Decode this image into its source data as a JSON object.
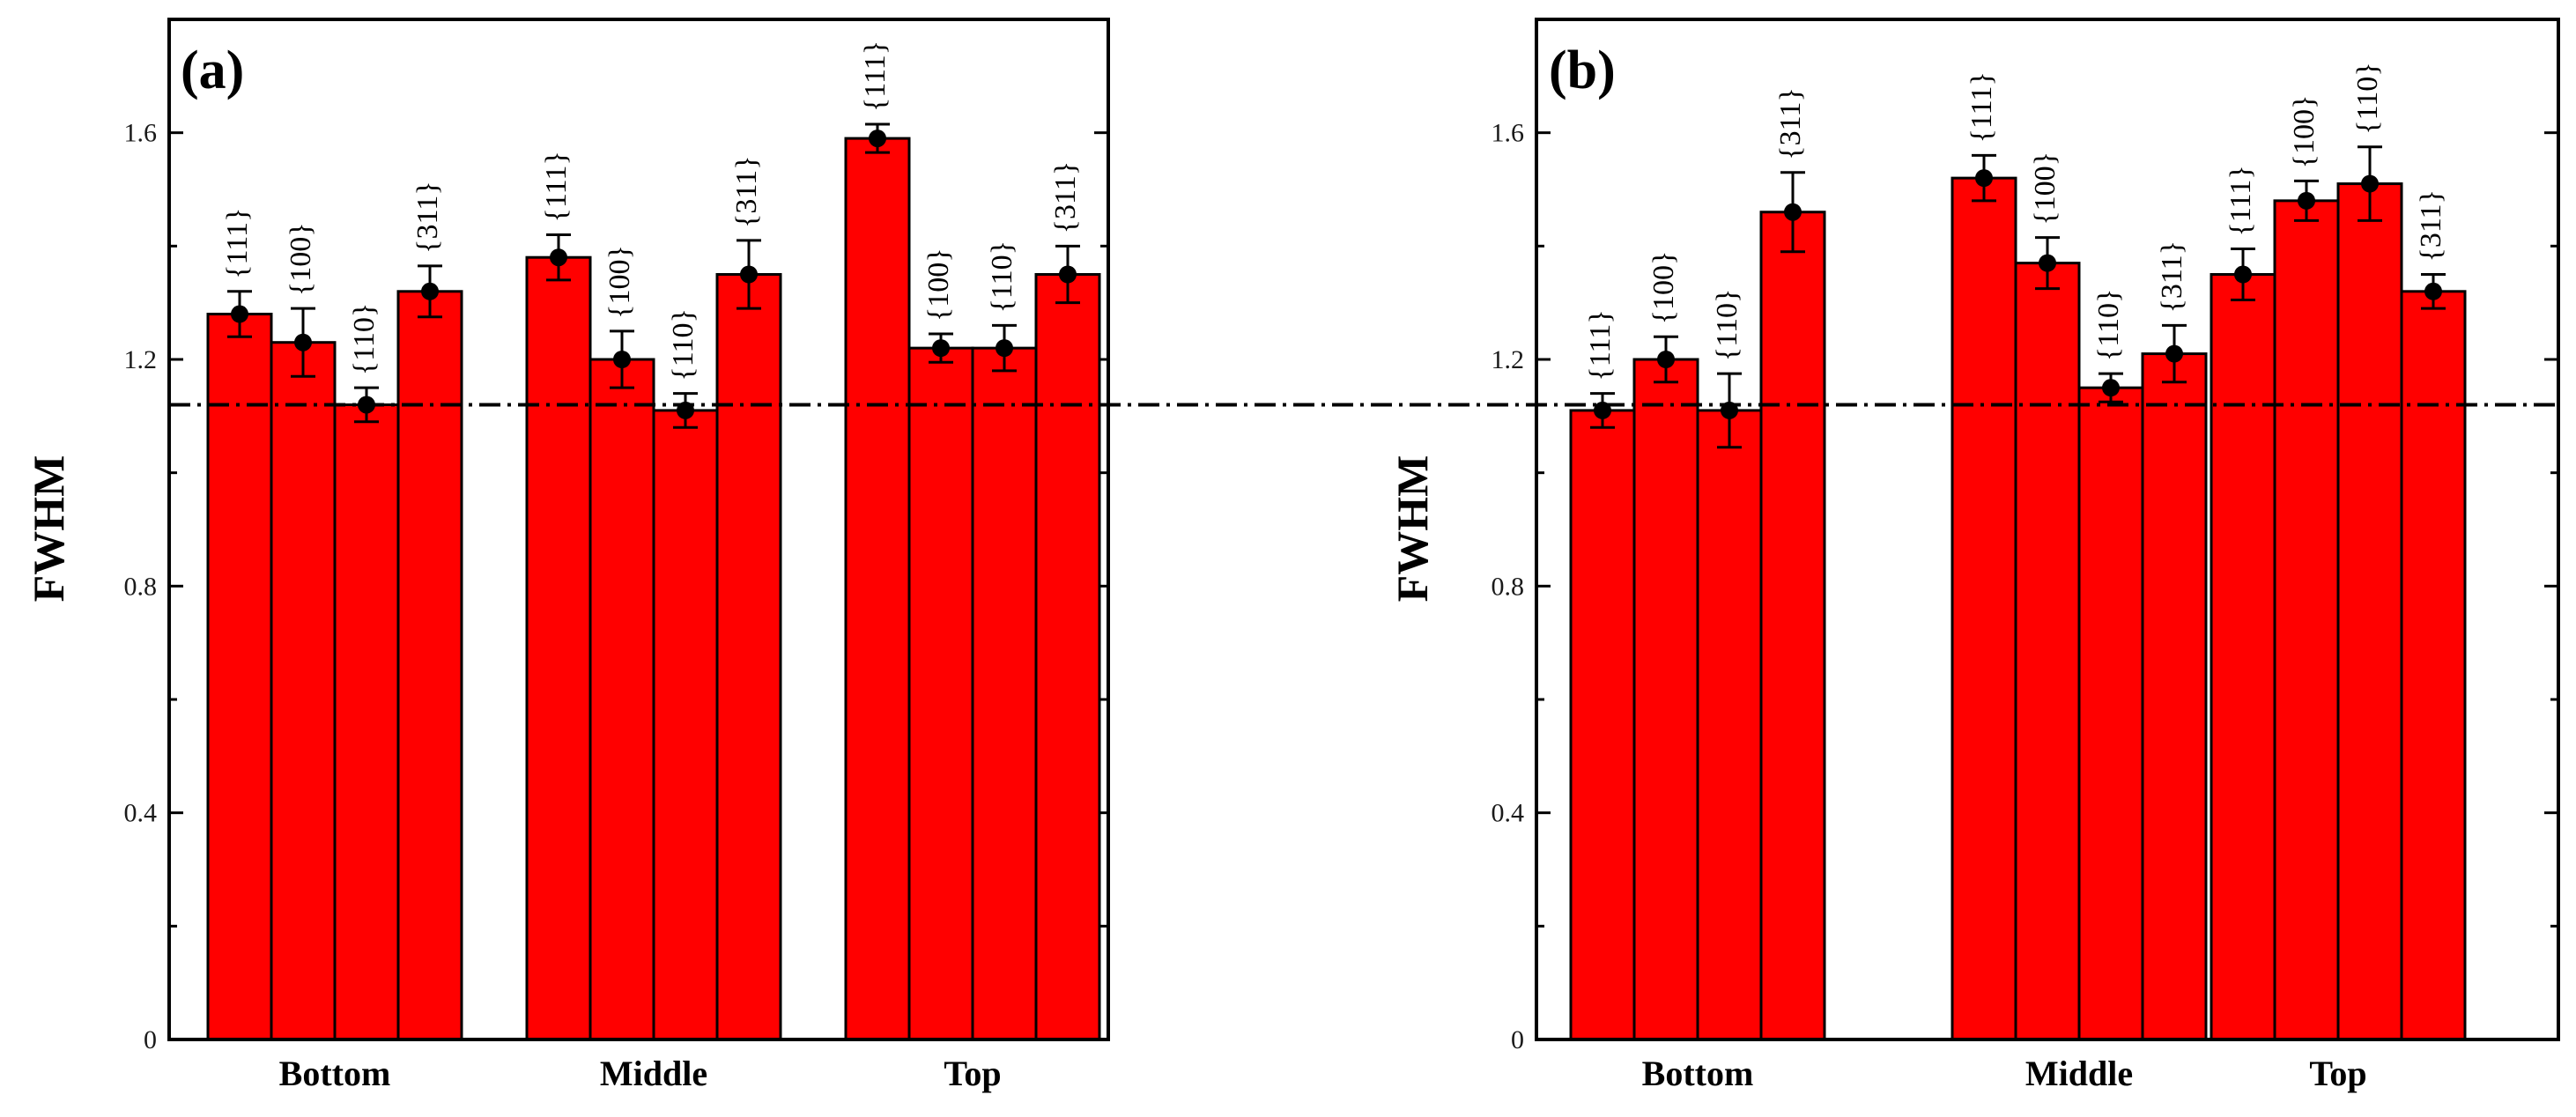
{
  "chart_data": [
    {
      "type": "bar",
      "panel_label": "(a)",
      "ylabel": "FWHM",
      "xlabel": "",
      "ylim": [
        0,
        1.8
      ],
      "yticks": [
        0,
        0.4,
        0.8,
        1.2,
        1.6
      ],
      "ytick_labels": [
        "0",
        "0.4",
        "0.8",
        "1.2",
        "1.6"
      ],
      "categories": [
        "Bottom",
        "Middle",
        "Top"
      ],
      "reference_line": 1.12,
      "groups": [
        {
          "category": "Bottom",
          "bars": [
            {
              "label": "{111}",
              "value": 1.28,
              "error": 0.04
            },
            {
              "label": "{100}",
              "value": 1.23,
              "error": 0.06
            },
            {
              "label": "{110}",
              "value": 1.12,
              "error": 0.03
            },
            {
              "label": "{311}",
              "value": 1.32,
              "error": 0.045
            }
          ]
        },
        {
          "category": "Middle",
          "bars": [
            {
              "label": "{111}",
              "value": 1.38,
              "error": 0.04
            },
            {
              "label": "{100}",
              "value": 1.2,
              "error": 0.05
            },
            {
              "label": "{110}",
              "value": 1.11,
              "error": 0.03
            },
            {
              "label": "{311}",
              "value": 1.35,
              "error": 0.06
            }
          ]
        },
        {
          "category": "Top",
          "bars": [
            {
              "label": "{111}",
              "value": 1.59,
              "error": 0.025
            },
            {
              "label": "{100}",
              "value": 1.22,
              "error": 0.025
            },
            {
              "label": "{110}",
              "value": 1.22,
              "error": 0.04
            },
            {
              "label": "{311}",
              "value": 1.35,
              "error": 0.05
            }
          ]
        }
      ]
    },
    {
      "type": "bar",
      "panel_label": "(b)",
      "ylabel": "FWHM",
      "xlabel": "",
      "ylim": [
        0,
        1.8
      ],
      "yticks": [
        0,
        0.4,
        0.8,
        1.2,
        1.6
      ],
      "ytick_labels": [
        "0",
        "0.4",
        "0.8",
        "1.2",
        "1.6"
      ],
      "categories": [
        "Bottom",
        "Middle",
        "Top"
      ],
      "reference_line": 1.12,
      "groups": [
        {
          "category": "Bottom",
          "bars": [
            {
              "label": "{111}",
              "value": 1.11,
              "error": 0.03
            },
            {
              "label": "{100}",
              "value": 1.2,
              "error": 0.04
            },
            {
              "label": "{110}",
              "value": 1.11,
              "error": 0.065
            },
            {
              "label": "{311}",
              "value": 1.46,
              "error": 0.07
            }
          ]
        },
        {
          "category": "Middle",
          "bars": [
            {
              "label": "{111}",
              "value": 1.52,
              "error": 0.04
            },
            {
              "label": "{100}",
              "value": 1.37,
              "error": 0.045
            },
            {
              "label": "{110}",
              "value": 1.15,
              "error": 0.025
            },
            {
              "label": "{311}",
              "value": 1.21,
              "error": 0.05
            }
          ]
        },
        {
          "category": "Top",
          "bars": [
            {
              "label": "{111}",
              "value": 1.35,
              "error": 0.045
            },
            {
              "label": "{100}",
              "value": 1.48,
              "error": 0.035
            },
            {
              "label": "{110}",
              "value": 1.51,
              "error": 0.065
            },
            {
              "label": "{311}",
              "value": 1.32,
              "error": 0.03
            }
          ]
        }
      ]
    }
  ],
  "colors": {
    "bar_fill": "#ff0000",
    "bar_stroke": "#000000",
    "axis": "#000000",
    "ylabel": "#3a2a00"
  }
}
